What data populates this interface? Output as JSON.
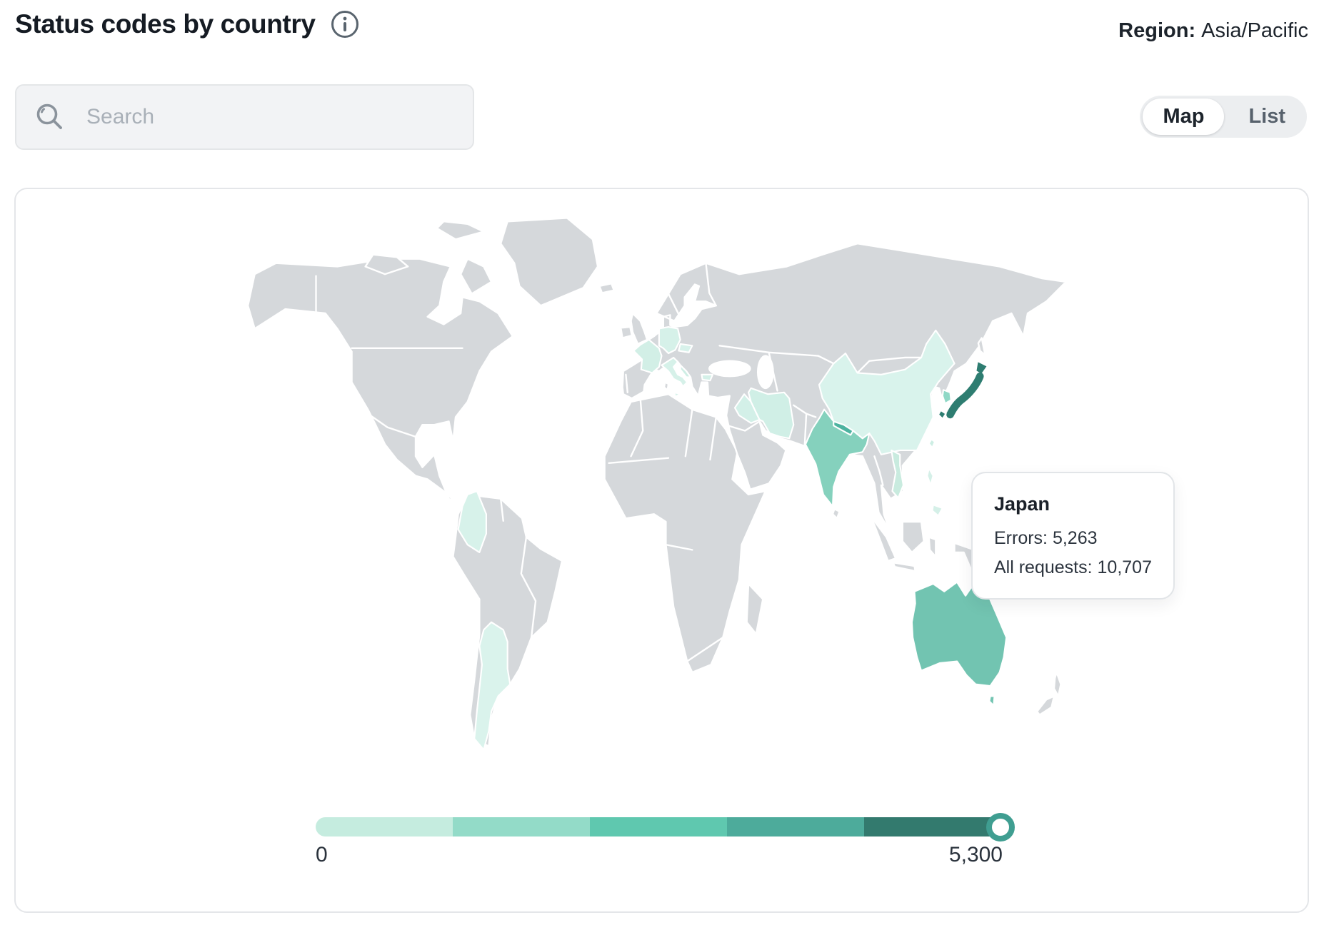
{
  "header": {
    "title": "Status codes by country",
    "region_label": "Region:",
    "region_value": "Asia/Pacific"
  },
  "controls": {
    "search_placeholder": "Search",
    "view_toggle": {
      "options": [
        "Map",
        "List"
      ],
      "selected": "Map"
    }
  },
  "tooltip": {
    "country": "Japan",
    "errors_label": "Errors:",
    "errors_value": "5,263",
    "all_requests_label": "All requests:",
    "all_requests_value": "10,707"
  },
  "chart_data": {
    "type": "choropleth",
    "title": "Status codes by country",
    "metric": "Errors",
    "region_filter": "Asia/Pacific",
    "land_color": "#d5d8db",
    "border_color": "#ffffff",
    "ocean_color": "#ffffff",
    "scale": {
      "min": 0,
      "max": 5300,
      "min_label": "0",
      "max_label": "5,300",
      "palette": [
        "#c5ecdf",
        "#93dbc8",
        "#5fc8af",
        "#4dab9b",
        "#337a6e"
      ],
      "handle_color": "#3f9e91",
      "handle_position": "max"
    },
    "highlighted_country": {
      "name": "Japan",
      "errors": 5263,
      "all_requests": 10707
    },
    "countries": [
      {
        "id": "france",
        "name": "France",
        "color": "#d2efe6"
      },
      {
        "id": "germany",
        "name": "Germany",
        "color": "#d6f1e9"
      },
      {
        "id": "czechia",
        "name": "Czechia",
        "color": "#d8f2eb"
      },
      {
        "id": "italy",
        "name": "Italy",
        "color": "#d6f1e9"
      },
      {
        "id": "croatia",
        "name": "Croatia",
        "color": "#cfeee5"
      },
      {
        "id": "bulgaria",
        "name": "Bulgaria",
        "color": "#d4f0e8"
      },
      {
        "id": "colombia",
        "name": "Colombia",
        "color": "#d7f2ea"
      },
      {
        "id": "argentina",
        "name": "Argentina",
        "color": "#daf3ec"
      },
      {
        "id": "iraq",
        "name": "Iraq",
        "color": "#d3f0e8"
      },
      {
        "id": "iran",
        "name": "Iran",
        "color": "#d0efe6"
      },
      {
        "id": "india",
        "name": "India",
        "color": "#85d1bd"
      },
      {
        "id": "nepal",
        "name": "Nepal",
        "color": "#4db3a0"
      },
      {
        "id": "china",
        "name": "China",
        "color": "#d9f3ec"
      },
      {
        "id": "south-korea",
        "name": "South Korea",
        "color": "#8fd8c6"
      },
      {
        "id": "vietnam",
        "name": "Vietnam",
        "color": "#c9ebdf"
      },
      {
        "id": "taiwan",
        "name": "Taiwan",
        "color": "#cdeee4"
      },
      {
        "id": "philippines",
        "name": "Philippines",
        "color": "#d5f0e8"
      },
      {
        "id": "japan",
        "name": "Japan",
        "color": "#2e7d71"
      },
      {
        "id": "australia",
        "name": "Australia",
        "color": "#72c4b1"
      }
    ]
  }
}
